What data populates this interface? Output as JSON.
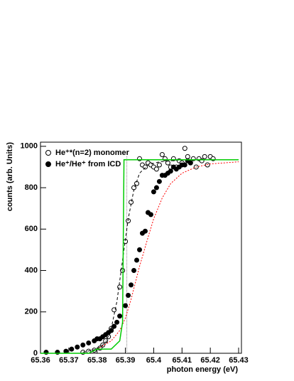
{
  "chart_data": {
    "type": "scatter",
    "x_label": "photon energy (eV)",
    "y_label": "counts (arb. Units)",
    "xlim": [
      65.36,
      65.431
    ],
    "ylim": [
      0,
      1020
    ],
    "xticks": [
      65.36,
      65.37,
      65.38,
      65.39,
      65.4,
      65.41,
      65.42,
      65.43
    ],
    "yticks": [
      0,
      200,
      400,
      600,
      800,
      1000
    ],
    "vline": 65.3905,
    "series": [
      {
        "name": "He⁺*(n=2) monomer",
        "color": "#000000",
        "style": "open",
        "x": [
          65.375,
          65.377,
          65.379,
          65.381,
          65.382,
          65.383,
          65.384,
          65.385,
          65.386,
          65.388,
          65.389,
          65.39,
          65.391,
          65.392,
          65.393,
          65.394,
          65.395,
          65.396,
          65.397,
          65.398,
          65.399,
          65.4,
          65.401,
          65.402,
          65.403,
          65.404,
          65.405,
          65.406,
          65.407,
          65.408,
          65.409,
          65.41,
          65.411,
          65.412,
          65.413,
          65.414,
          65.415,
          65.416,
          65.417,
          65.418,
          65.419,
          65.42,
          65.421
        ],
        "values": [
          5,
          10,
          15,
          25,
          40,
          60,
          80,
          120,
          210,
          320,
          400,
          540,
          640,
          730,
          800,
          820,
          940,
          910,
          900,
          920,
          910,
          900,
          890,
          910,
          960,
          940,
          920,
          900,
          940,
          900,
          930,
          920,
          990,
          950,
          920,
          940,
          900,
          940,
          930,
          950,
          910,
          950,
          940
        ]
      },
      {
        "name": "He⁺/He⁺ from ICD",
        "color": "#000000",
        "style": "filled",
        "x": [
          65.362,
          65.366,
          65.369,
          65.371,
          65.373,
          65.375,
          65.377,
          65.379,
          65.38,
          65.381,
          65.382,
          65.383,
          65.384,
          65.385,
          65.386,
          65.387,
          65.388,
          65.39,
          65.391,
          65.392,
          65.393,
          65.394,
          65.395,
          65.396,
          65.397,
          65.398,
          65.399,
          65.4,
          65.401,
          65.402,
          65.403,
          65.404,
          65.405,
          65.406,
          65.407,
          65.408,
          65.409,
          65.41,
          65.411,
          65.412,
          65.413
        ],
        "values": [
          5,
          5,
          10,
          20,
          30,
          40,
          50,
          60,
          70,
          70,
          80,
          90,
          100,
          110,
          130,
          150,
          180,
          230,
          280,
          330,
          400,
          450,
          500,
          580,
          590,
          680,
          670,
          780,
          800,
          830,
          860,
          860,
          870,
          880,
          900,
          890,
          900,
          910,
          910,
          930,
          920
        ]
      },
      {
        "color": "#000000",
        "style": "dashed",
        "x": [
          65.375,
          65.38,
          65.383,
          65.385,
          65.387,
          65.389,
          65.391,
          65.393,
          65.395,
          65.398,
          65.402,
          65.41,
          65.43
        ],
        "values": [
          5,
          20,
          50,
          120,
          250,
          450,
          650,
          790,
          870,
          910,
          925,
          935,
          935
        ]
      },
      {
        "color": "#ff0000",
        "style": "dotted",
        "x": [
          65.38,
          65.385,
          65.388,
          65.39,
          65.392,
          65.395,
          65.398,
          65.4,
          65.403,
          65.406,
          65.41,
          65.415,
          65.42,
          65.43
        ],
        "values": [
          20,
          60,
          110,
          170,
          260,
          420,
          560,
          650,
          750,
          820,
          870,
          900,
          915,
          925
        ]
      },
      {
        "color": "#00cc00",
        "style": "solid",
        "x": [
          65.36,
          65.377,
          65.38,
          65.385,
          65.388,
          65.389,
          65.3895,
          65.43
        ],
        "values": [
          0,
          0,
          20,
          20,
          60,
          150,
          935,
          935
        ]
      }
    ]
  }
}
